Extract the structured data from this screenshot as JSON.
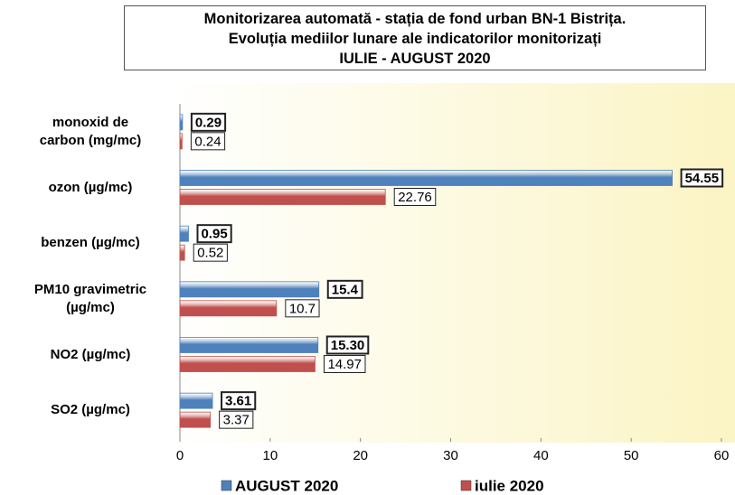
{
  "chart_data": {
    "type": "hbar",
    "title": "Monitorizarea automată  - stația de fond urban BN-1 Bistrița.\nEvoluția mediilor lunare ale indicatorilor monitorizați\nIULIE - AUGUST  2020",
    "categories": [
      "monoxid de\ncarbon (mg/mc)",
      "ozon (µg/mc)",
      "benzen (µg/mc)",
      "PM10 gravimetric\n(µg/mc)",
      "NO2 (µg/mc)",
      "SO2 (µg/mc)"
    ],
    "series": [
      {
        "name": "AUGUST 2020",
        "color": "#4f81bd",
        "values": [
          0.29,
          54.55,
          0.95,
          15.4,
          15.3,
          3.61
        ],
        "value_labels": [
          "0.29",
          "54.55",
          "0.95",
          "15.4",
          "15.30",
          "3.61"
        ]
      },
      {
        "name": "iulie 2020",
        "color": "#c0504d",
        "values": [
          0.24,
          22.76,
          0.52,
          10.7,
          14.97,
          3.37
        ]
      }
    ],
    "xlim": [
      0,
      60
    ],
    "xticks": [
      0,
      10,
      20,
      30,
      40,
      50,
      60
    ],
    "grid": false,
    "legend": "bottom"
  }
}
